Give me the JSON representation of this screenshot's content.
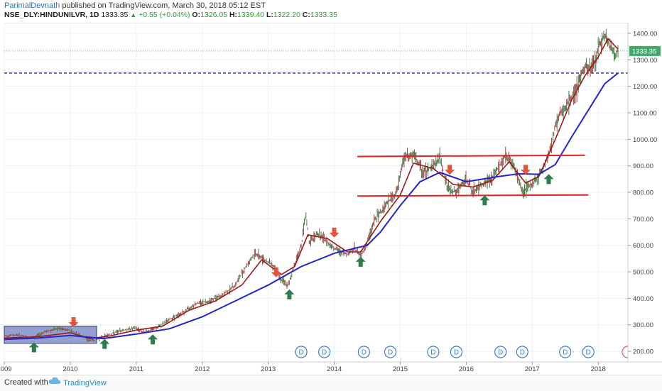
{
  "header": {
    "author": "ParimalDevnath",
    "published_text": "published on TradingView.com, March 30, 2018 05:12 EST",
    "symbol": "NSE_DLY:HINDUNILVR, 1D",
    "last": "1333.35",
    "change": "+0.55 (+0.04%)",
    "o_label": "O:",
    "o_value": "1326.05",
    "h_label": "H:",
    "h_value": "1339.40",
    "l_label": "L:",
    "l_value": "1322.20",
    "c_label": "C:",
    "c_value": "1333.35"
  },
  "footer": {
    "created_with": "Created with",
    "brand": "TradingView"
  },
  "colors": {
    "candles": "#555555",
    "ema_fast": "#a01818",
    "ema_slow": "#2424c8",
    "channel_lines": "#e02020",
    "box_fill": "#7080c0",
    "up_arrow": "#2e7d4f",
    "down_arrow": "#e2553a",
    "dividend_marker": "#3b7dd8"
  },
  "chart_data": {
    "type": "line",
    "x_tick_labels": [
      "2009",
      "2010",
      "2011",
      "2012",
      "2013",
      "2014",
      "2015",
      "2016",
      "2017",
      "2018"
    ],
    "y_tick_labels": [
      "200.00",
      "300.00",
      "400.00",
      "500.00",
      "600.00",
      "700.00",
      "800.00",
      "900.00",
      "1000.00",
      "1100.00",
      "1200.00",
      "1300.00",
      "1400.00"
    ],
    "ylim": [
      160,
      1440
    ],
    "xlim": [
      2009.0,
      2018.45
    ],
    "scale": "linear",
    "grid": true,
    "price_axis_position": "right",
    "last_price_label": "1333.35",
    "price_path": [
      [
        2009.0,
        258
      ],
      [
        2009.2,
        262
      ],
      [
        2009.4,
        248
      ],
      [
        2009.6,
        272
      ],
      [
        2009.8,
        285
      ],
      [
        2010.0,
        280
      ],
      [
        2010.15,
        260
      ],
      [
        2010.3,
        240
      ],
      [
        2010.45,
        248
      ],
      [
        2010.6,
        265
      ],
      [
        2010.8,
        280
      ],
      [
        2011.0,
        288
      ],
      [
        2011.1,
        272
      ],
      [
        2011.3,
        285
      ],
      [
        2011.5,
        320
      ],
      [
        2011.7,
        345
      ],
      [
        2011.9,
        380
      ],
      [
        2012.1,
        390
      ],
      [
        2012.3,
        410
      ],
      [
        2012.5,
        450
      ],
      [
        2012.65,
        515
      ],
      [
        2012.8,
        570
      ],
      [
        2012.95,
        545
      ],
      [
        2013.1,
        520
      ],
      [
        2013.2,
        470
      ],
      [
        2013.3,
        445
      ],
      [
        2013.4,
        530
      ],
      [
        2013.5,
        600
      ],
      [
        2013.57,
        715
      ],
      [
        2013.62,
        610
      ],
      [
        2013.75,
        645
      ],
      [
        2013.9,
        610
      ],
      [
        2014.05,
        580
      ],
      [
        2014.2,
        565
      ],
      [
        2014.3,
        590
      ],
      [
        2014.4,
        560
      ],
      [
        2014.5,
        610
      ],
      [
        2014.6,
        690
      ],
      [
        2014.8,
        760
      ],
      [
        2014.95,
        800
      ],
      [
        2015.05,
        930
      ],
      [
        2015.2,
        940
      ],
      [
        2015.35,
        875
      ],
      [
        2015.5,
        900
      ],
      [
        2015.6,
        930
      ],
      [
        2015.72,
        815
      ],
      [
        2015.85,
        800
      ],
      [
        2016.0,
        850
      ],
      [
        2016.1,
        800
      ],
      [
        2016.25,
        830
      ],
      [
        2016.4,
        855
      ],
      [
        2016.5,
        900
      ],
      [
        2016.6,
        940
      ],
      [
        2016.72,
        900
      ],
      [
        2016.85,
        805
      ],
      [
        2016.95,
        820
      ],
      [
        2017.05,
        845
      ],
      [
        2017.15,
        880
      ],
      [
        2017.25,
        940
      ],
      [
        2017.35,
        1050
      ],
      [
        2017.45,
        1110
      ],
      [
        2017.55,
        1140
      ],
      [
        2017.65,
        1175
      ],
      [
        2017.72,
        1230
      ],
      [
        2017.8,
        1270
      ],
      [
        2017.88,
        1265
      ],
      [
        2017.95,
        1300
      ],
      [
        2018.0,
        1345
      ],
      [
        2018.05,
        1375
      ],
      [
        2018.1,
        1395
      ],
      [
        2018.15,
        1360
      ],
      [
        2018.2,
        1340
      ],
      [
        2018.25,
        1320
      ],
      [
        2018.3,
        1333.35
      ]
    ],
    "series": [
      {
        "values": [
          [
            2009.0,
            250
          ],
          [
            2009.5,
            255
          ],
          [
            2010.0,
            270
          ],
          [
            2010.3,
            248
          ],
          [
            2010.6,
            258
          ],
          [
            2011.0,
            280
          ],
          [
            2011.4,
            295
          ],
          [
            2011.8,
            355
          ],
          [
            2012.2,
            390
          ],
          [
            2012.6,
            450
          ],
          [
            2012.9,
            545
          ],
          [
            2013.2,
            490
          ],
          [
            2013.4,
            520
          ],
          [
            2013.6,
            640
          ],
          [
            2013.9,
            625
          ],
          [
            2014.2,
            575
          ],
          [
            2014.4,
            575
          ],
          [
            2014.7,
            690
          ],
          [
            2015.0,
            790
          ],
          [
            2015.2,
            910
          ],
          [
            2015.5,
            890
          ],
          [
            2015.8,
            830
          ],
          [
            2016.1,
            820
          ],
          [
            2016.4,
            845
          ],
          [
            2016.65,
            915
          ],
          [
            2016.9,
            835
          ],
          [
            2017.1,
            860
          ],
          [
            2017.35,
            1000
          ],
          [
            2017.6,
            1150
          ],
          [
            2017.8,
            1240
          ],
          [
            2018.0,
            1310
          ],
          [
            2018.15,
            1380
          ],
          [
            2018.3,
            1340
          ]
        ]
      },
      {
        "values": [
          [
            2009.0,
            245
          ],
          [
            2009.5,
            250
          ],
          [
            2010.0,
            260
          ],
          [
            2010.5,
            248
          ],
          [
            2011.0,
            265
          ],
          [
            2011.5,
            285
          ],
          [
            2012.0,
            330
          ],
          [
            2012.5,
            390
          ],
          [
            2013.0,
            450
          ],
          [
            2013.5,
            520
          ],
          [
            2014.0,
            570
          ],
          [
            2014.5,
            600
          ],
          [
            2014.7,
            650
          ],
          [
            2015.0,
            750
          ],
          [
            2015.3,
            840
          ],
          [
            2015.6,
            875
          ],
          [
            2016.0,
            840
          ],
          [
            2016.5,
            860
          ],
          [
            2016.8,
            870
          ],
          [
            2017.1,
            868
          ],
          [
            2017.35,
            905
          ],
          [
            2017.6,
            1010
          ],
          [
            2017.9,
            1130
          ],
          [
            2018.1,
            1210
          ],
          [
            2018.3,
            1250
          ]
        ]
      }
    ],
    "channel_lines": [
      {
        "from": [
          2014.35,
          935
        ],
        "to": [
          2017.8,
          940
        ]
      },
      {
        "from": [
          2014.35,
          786
        ],
        "to": [
          2017.85,
          790
        ]
      }
    ],
    "horizontal_lines": [
      {
        "y": 1250,
        "style": "dashed"
      },
      {
        "y": 1333,
        "style": "dotted"
      }
    ],
    "boxes": [
      {
        "x": [
          2009.0,
          2010.4
        ],
        "y": [
          230,
          295
        ]
      }
    ],
    "up_arrows": [
      {
        "x": 2009.45,
        "y": 215
      },
      {
        "x": 2010.52,
        "y": 228
      },
      {
        "x": 2011.25,
        "y": 245
      },
      {
        "x": 2013.32,
        "y": 415
      },
      {
        "x": 2014.4,
        "y": 538
      },
      {
        "x": 2016.28,
        "y": 770
      },
      {
        "x": 2017.25,
        "y": 850
      }
    ],
    "down_arrows": [
      {
        "x": 2010.05,
        "y": 310
      },
      {
        "x": 2013.12,
        "y": 498
      },
      {
        "x": 2014.0,
        "y": 648
      },
      {
        "x": 2015.75,
        "y": 885
      },
      {
        "x": 2016.9,
        "y": 885
      }
    ],
    "dividend_markers": {
      "label": "D",
      "x": [
        2013.5,
        2013.85,
        2014.45,
        2014.85,
        2015.5,
        2015.85,
        2016.52,
        2016.85,
        2017.5,
        2017.85
      ]
    }
  }
}
